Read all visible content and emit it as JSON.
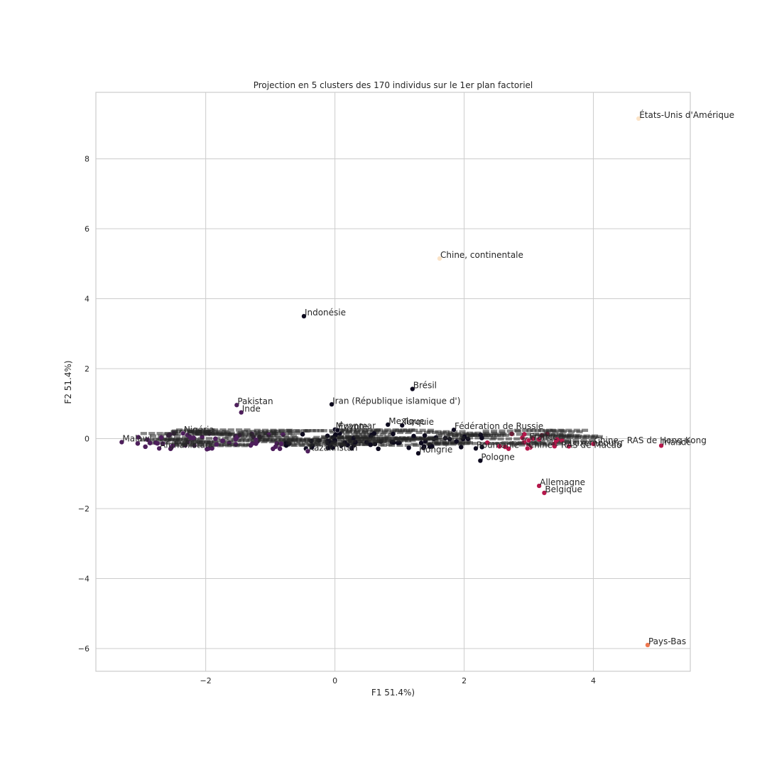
{
  "chart_data": {
    "type": "scatter",
    "title": "Projection en 5 clusters des 170 individus sur le 1er plan factoriel",
    "xlabel": "F1 51.4%)",
    "ylabel": "F2 51.4%)",
    "xlim": [
      -3.7,
      5.5
    ],
    "ylim": [
      -6.65,
      9.9
    ],
    "grid": true,
    "xticks": [
      -2,
      0,
      2,
      4
    ],
    "yticks": [
      -6,
      -4,
      -2,
      0,
      2,
      4,
      6,
      8
    ],
    "tick_labels_x": [
      "−2",
      "0",
      "2",
      "4"
    ],
    "tick_labels_y": [
      "−6",
      "−4",
      "−2",
      "0",
      "2",
      "4",
      "6",
      "8"
    ],
    "cluster_colors": {
      "0": "#0d0a1e",
      "1": "#4e1f5c",
      "2": "#b5174b",
      "3": "#ee7850",
      "4": "#fbe3c7"
    },
    "labeled_points": [
      {
        "label": "États-Unis d'Amérique",
        "x": 4.7,
        "y": 9.15,
        "cluster": 4
      },
      {
        "label": "Chine, continentale",
        "x": 1.62,
        "y": 5.15,
        "cluster": 4
      },
      {
        "label": "Indonésie",
        "x": -0.48,
        "y": 3.5,
        "cluster": 0
      },
      {
        "label": "Brésil",
        "x": 1.2,
        "y": 1.42,
        "cluster": 0
      },
      {
        "label": "Iran (République islamique d')",
        "x": -0.05,
        "y": 0.98,
        "cluster": 0
      },
      {
        "label": "Pakistan",
        "x": -1.52,
        "y": 0.96,
        "cluster": 1
      },
      {
        "label": "Inde",
        "x": -1.45,
        "y": 0.75,
        "cluster": 1
      },
      {
        "label": "Mexique",
        "x": 0.82,
        "y": 0.4,
        "cluster": 0
      },
      {
        "label": "Turquie",
        "x": 1.04,
        "y": 0.38,
        "cluster": 0
      },
      {
        "label": "Fédération de Russie",
        "x": 1.84,
        "y": 0.25,
        "cluster": 0
      },
      {
        "label": "Nigéria",
        "x": -2.35,
        "y": 0.15,
        "cluster": 1
      },
      {
        "label": "Myanmar",
        "x": 0.0,
        "y": 0.26,
        "cluster": 0
      },
      {
        "label": "Égypte",
        "x": 0.04,
        "y": 0.24,
        "cluster": 0
      },
      {
        "label": "Malawi",
        "x": -3.3,
        "y": -0.1,
        "cluster": 1
      },
      {
        "label": "Afghanistan",
        "x": -2.72,
        "y": -0.28,
        "cluster": 1
      },
      {
        "label": "Kazakhstan",
        "x": -0.42,
        "y": -0.36,
        "cluster": 1
      },
      {
        "label": "Hongrie",
        "x": 1.29,
        "y": -0.42,
        "cluster": 0
      },
      {
        "label": "Pologne",
        "x": 2.25,
        "y": -0.63,
        "cluster": 0
      },
      {
        "label": "Roumanie",
        "x": 2.18,
        "y": -0.28,
        "cluster": 0
      },
      {
        "label": "France",
        "x": 3.0,
        "y": -0.05,
        "cluster": 2
      },
      {
        "label": "Chine - RAS de Macao",
        "x": 2.98,
        "y": -0.28,
        "cluster": 2
      },
      {
        "label": "Luxembourg",
        "x": 3.62,
        "y": -0.22,
        "cluster": 2
      },
      {
        "label": "Chine - RAS de Hong-Kong",
        "x": 4.0,
        "y": -0.15,
        "cluster": 2
      },
      {
        "label": "Irlande",
        "x": 5.05,
        "y": -0.2,
        "cluster": 2
      },
      {
        "label": "Allemagne",
        "x": 3.16,
        "y": -1.35,
        "cluster": 2
      },
      {
        "label": "Belgique",
        "x": 3.24,
        "y": -1.55,
        "cluster": 2
      },
      {
        "label": "Pays-Bas",
        "x": 4.84,
        "y": -5.9,
        "cluster": 3
      }
    ]
  }
}
